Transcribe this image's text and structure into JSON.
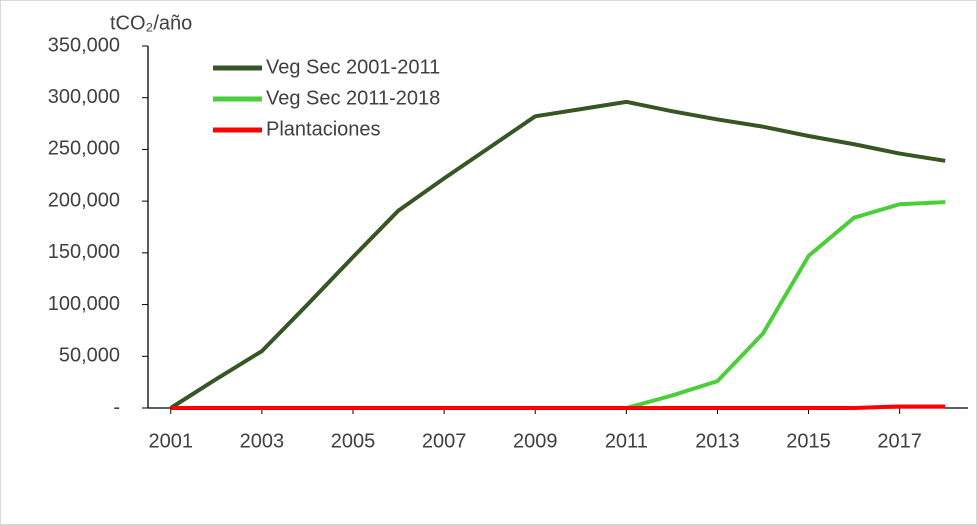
{
  "chart_data": {
    "type": "line",
    "y_axis_label": "tCO₂/año",
    "x": [
      2001,
      2002,
      2003,
      2004,
      2005,
      2006,
      2007,
      2008,
      2009,
      2010,
      2011,
      2012,
      2013,
      2014,
      2015,
      2016,
      2017,
      2018
    ],
    "series": [
      {
        "name": "Veg Sec 2001-2011",
        "color": "#375623",
        "values": [
          0,
          28000,
          55000,
          100000,
          146000,
          191000,
          222000,
          252000,
          282000,
          289000,
          296000,
          287000,
          279000,
          272000,
          263000,
          255000,
          246000,
          239000
        ]
      },
      {
        "name": "Veg Sec 2011-2018",
        "color": "#4ccd3a",
        "values": [
          null,
          null,
          null,
          null,
          null,
          null,
          null,
          null,
          null,
          null,
          0,
          12000,
          26000,
          72000,
          147000,
          184000,
          197000,
          199000
        ]
      },
      {
        "name": "Plantaciones",
        "color": "#ff0000",
        "values": [
          0,
          0,
          0,
          0,
          0,
          0,
          0,
          0,
          0,
          0,
          0,
          0,
          0,
          0,
          0,
          0,
          1500,
          1500
        ]
      }
    ],
    "xlim": [
      2000.5,
      2018.5
    ],
    "xticks": [
      2001,
      2003,
      2005,
      2007,
      2009,
      2011,
      2013,
      2015,
      2017
    ],
    "ylim": [
      0,
      350000
    ],
    "yticks": [
      {
        "value": 0,
        "label": "-"
      },
      {
        "value": 50000,
        "label": "50,000"
      },
      {
        "value": 100000,
        "label": "100,000"
      },
      {
        "value": 150000,
        "label": "150,000"
      },
      {
        "value": 200000,
        "label": "200,000"
      },
      {
        "value": 250000,
        "label": "250,000"
      },
      {
        "value": 300000,
        "label": "300,000"
      },
      {
        "value": 350000,
        "label": "350,000"
      }
    ],
    "legend": "upper left"
  }
}
